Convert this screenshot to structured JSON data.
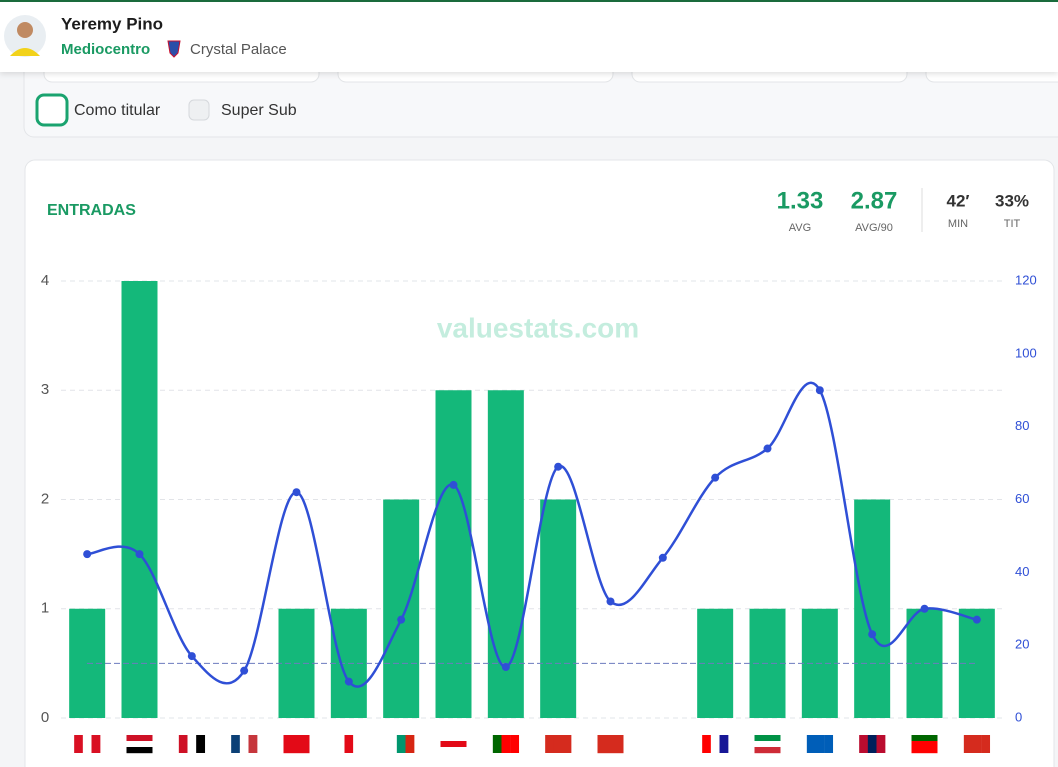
{
  "header": {
    "name": "Yeremy Pino",
    "position": "Mediocentro",
    "club": "Crystal Palace"
  },
  "filters": [
    "Como titular",
    "Super Sub"
  ],
  "watermark": "valuestats.com",
  "stats": [
    {
      "value": 1.33,
      "label": "AVG"
    },
    {
      "value": 2.87,
      "label": "AVG/90"
    },
    {
      "value": "42′",
      "label": "MIN"
    },
    {
      "value": "33%",
      "label": "TIT"
    }
  ],
  "chart_data": {
    "type": "bar",
    "title": "ENTRADAS",
    "categories": [
      null,
      null,
      null,
      null,
      null,
      null,
      null,
      null,
      null,
      null,
      null,
      null,
      null,
      null,
      null,
      null,
      null,
      null
    ],
    "values": [
      1,
      4,
      0,
      0,
      1,
      1,
      2,
      3,
      3,
      2,
      0,
      0,
      1,
      1,
      1,
      2,
      1,
      1
    ],
    "color": "#14b87a",
    "line": {
      "type": "line",
      "axis": "y2",
      "color": "#2f4fd6",
      "values": [
        45,
        45,
        17,
        13,
        62,
        10,
        27,
        64,
        14,
        69,
        32,
        44,
        66,
        74,
        90,
        23,
        30,
        27
      ]
    },
    "reference_line": 0.5,
    "ylim": [
      0,
      4
    ],
    "yticks": [
      0,
      1,
      2,
      3,
      4
    ],
    "y2lim": [
      0,
      120
    ],
    "y2ticks": [
      0,
      20,
      40,
      60,
      80,
      100,
      120
    ],
    "grid": true
  }
}
